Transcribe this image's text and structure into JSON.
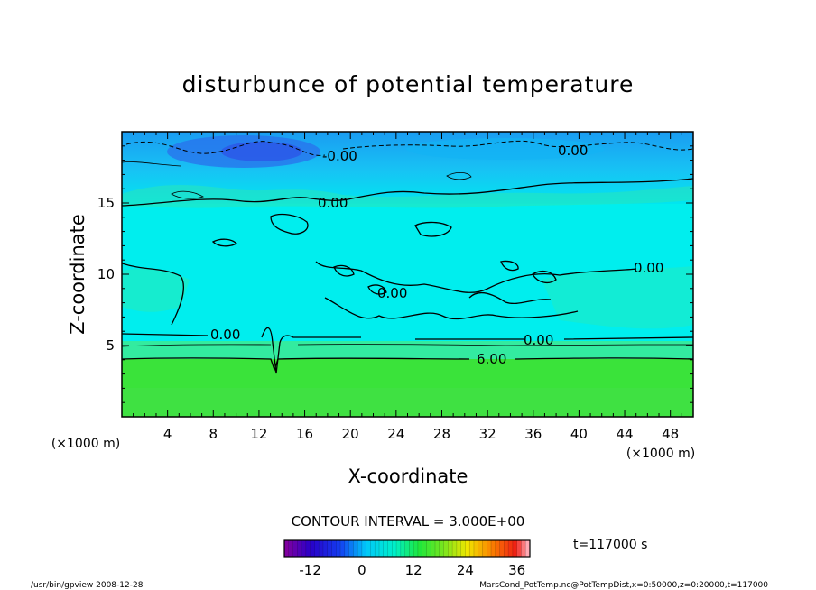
{
  "chart_data": {
    "type": "heatmap",
    "title": "disturbunce of potential temperature",
    "xlabel": "X-coordinate",
    "ylabel": "Z-coordinate",
    "x_unit": "(×1000 m)",
    "x_unit_right": "(×1000 m)",
    "xlim": [
      0,
      50
    ],
    "ylim": [
      0,
      20
    ],
    "x_ticks": [
      "4",
      "8",
      "12",
      "16",
      "20",
      "24",
      "28",
      "32",
      "36",
      "40",
      "44",
      "48"
    ],
    "y_ticks": [
      "5",
      "10",
      "15"
    ],
    "contour_labels": [
      "-0.00",
      "0.00",
      "0.00",
      "0.00",
      "0.00",
      "0.00",
      "0.00",
      "6.00"
    ],
    "contour_interval": "CONTOUR INTERVAL = 3.000E+00",
    "colorbar": {
      "ticks": [
        "-12",
        "0",
        "12",
        "24",
        "36"
      ],
      "range": [
        -18,
        39
      ]
    },
    "time_label": "t=117000 s",
    "field_bands": [
      {
        "z_from": 0,
        "z_to": 4.0,
        "value": 6.5,
        "color": "#3ae33a"
      },
      {
        "z_from": 4.0,
        "z_to": 5.4,
        "value": 3.0,
        "color": "#33eba0"
      },
      {
        "z_from": 5.4,
        "z_to": 15,
        "value": 0.5,
        "color": "#00eeee"
      },
      {
        "z_from": 15,
        "z_to": 17,
        "value": 0.5,
        "color": "#22eedd"
      },
      {
        "z_from": 17,
        "z_to": 20,
        "value": -2,
        "color": "#1ec8f0"
      }
    ],
    "colors": {
      "low": "#2f3fe8",
      "mid": "#00eeee",
      "high": "#3ae33a",
      "contour": "#000000"
    }
  },
  "footer": {
    "left": "/usr/bin/gpview   2008-12-28",
    "right": "MarsCond_PotTemp.nc@PotTempDist,x=0:50000,z=0:20000,t=117000"
  }
}
